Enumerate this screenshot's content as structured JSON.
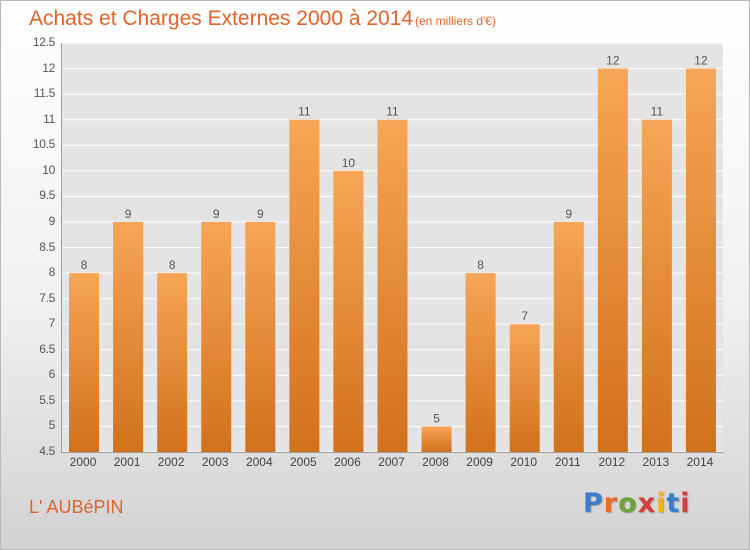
{
  "title": "Achats et Charges Externes 2000 à 2014",
  "unit": "(en milliers d'€)",
  "commune": "L' AUBéPIN",
  "logo": {
    "text": "Proxiti",
    "letter_colors": [
      "#3a7dc9",
      "#e86d1f",
      "#6aa537",
      "#d43f3a",
      "#f2b21b",
      "#3a7dc9",
      "#d43f3a"
    ]
  },
  "colors": {
    "bar_top": "#f7a556",
    "bar_bottom": "#d2711c",
    "accent": "#e0632a",
    "grid": "#ffffff",
    "plot_background": "#e4e4e4"
  },
  "chart_data": {
    "type": "bar",
    "categories": [
      "2000",
      "2001",
      "2002",
      "2003",
      "2004",
      "2005",
      "2006",
      "2007",
      "2008",
      "2009",
      "2010",
      "2011",
      "2012",
      "2013",
      "2014"
    ],
    "values": [
      8,
      9,
      8,
      9,
      9,
      11,
      10,
      11,
      5,
      8,
      7,
      9,
      12,
      11,
      12
    ],
    "data_labels": [
      "8",
      "9",
      "8",
      "9",
      "9",
      "11",
      "10",
      "11",
      "5",
      "8",
      "7",
      "9",
      "12",
      "11",
      "12"
    ],
    "ylim": [
      4.5,
      12.5
    ],
    "yticks": [
      4.5,
      5,
      5.5,
      6,
      6.5,
      7,
      7.5,
      8,
      8.5,
      9,
      9.5,
      10,
      10.5,
      11,
      11.5,
      12,
      12.5
    ],
    "ytick_labels": [
      "4.5",
      "5",
      "5.5",
      "6",
      "6.5",
      "7",
      "7.5",
      "8",
      "8.5",
      "9",
      "9.5",
      "10",
      "10.5",
      "11",
      "11.5",
      "12",
      "12.5"
    ],
    "grid": true
  }
}
